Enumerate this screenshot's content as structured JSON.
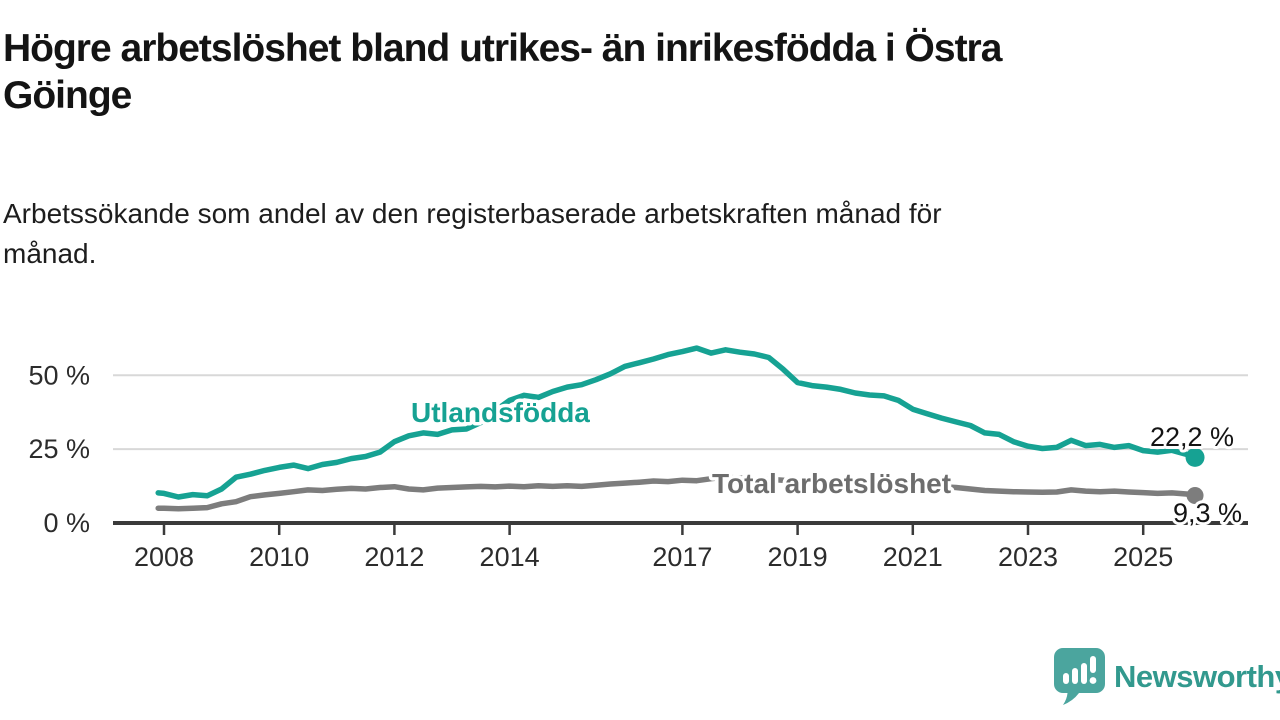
{
  "title_lines": [
    "Högre arbetslöshet bland utrikes- än inrikesfödda i Östra",
    "Göinge"
  ],
  "subtitle_lines": [
    "Arbetssökande som andel av den registerbaserade arbetskraften månad för",
    "månad."
  ],
  "colors": {
    "foreign_line": "#16a293",
    "total_line": "#7d7d7d",
    "total_label": "#6d6d6d",
    "grid": "#d8d8d8",
    "axis": "#3a3a3a",
    "text": "#141414",
    "logo_icon": "#4BA59E",
    "logo_text": "#32998E"
  },
  "chart_data": {
    "type": "line",
    "grid": "horizontal",
    "ylim": [
      0,
      62
    ],
    "x_years": [
      2007.9,
      2008,
      2008.25,
      2008.5,
      2008.75,
      2009,
      2009.25,
      2009.5,
      2009.75,
      2010,
      2010.25,
      2010.5,
      2010.75,
      2011,
      2011.25,
      2011.5,
      2011.75,
      2012,
      2012.25,
      2012.5,
      2012.75,
      2013,
      2013.25,
      2013.5,
      2013.75,
      2014,
      2014.25,
      2014.5,
      2014.75,
      2015,
      2015.25,
      2015.5,
      2015.75,
      2016,
      2016.25,
      2016.5,
      2016.75,
      2017,
      2017.25,
      2017.5,
      2017.75,
      2018,
      2018.25,
      2018.5,
      2018.75,
      2019,
      2019.25,
      2019.5,
      2019.75,
      2020,
      2020.25,
      2020.5,
      2020.75,
      2021,
      2021.25,
      2021.5,
      2021.75,
      2022,
      2022.25,
      2022.5,
      2022.75,
      2023,
      2023.25,
      2023.5,
      2023.75,
      2024,
      2024.25,
      2024.5,
      2024.75,
      2025,
      2025.25,
      2025.5,
      2025.75,
      2025.9
    ],
    "series": [
      {
        "name": "Utlandsfödda",
        "color": "#16a293",
        "end_label": "22,2 %",
        "end_value": 22.2,
        "values": [
          10.2,
          10.0,
          8.8,
          9.6,
          9.2,
          11.5,
          15.5,
          16.5,
          17.8,
          18.8,
          19.6,
          18.4,
          19.8,
          20.5,
          21.8,
          22.5,
          24.0,
          27.5,
          29.5,
          30.5,
          30.0,
          31.5,
          31.8,
          34.0,
          38.0,
          41.5,
          43.2,
          42.5,
          44.5,
          46.0,
          46.8,
          48.5,
          50.5,
          53.0,
          54.2,
          55.5,
          57.0,
          58.0,
          59.2,
          57.5,
          58.6,
          57.8,
          57.2,
          56.0,
          52.0,
          47.5,
          46.5,
          46.0,
          45.2,
          44.0,
          43.3,
          43.0,
          41.5,
          38.5,
          37.0,
          35.5,
          34.2,
          33.0,
          30.5,
          30.0,
          27.5,
          26.0,
          25.2,
          25.6,
          28.0,
          26.2,
          26.6,
          25.6,
          26.2,
          24.5,
          24.0,
          24.6,
          23.2,
          22.2
        ]
      },
      {
        "name": "Total arbetslöshet",
        "color": "#7d7d7d",
        "end_label": "9,3 %",
        "end_value": 9.3,
        "values": [
          5.0,
          5.0,
          4.8,
          5.0,
          5.2,
          6.5,
          7.2,
          8.9,
          9.5,
          10.0,
          10.6,
          11.2,
          11.0,
          11.4,
          11.7,
          11.5,
          12.0,
          12.3,
          11.5,
          11.2,
          11.8,
          12.0,
          12.2,
          12.4,
          12.2,
          12.5,
          12.3,
          12.6,
          12.4,
          12.6,
          12.4,
          12.8,
          13.2,
          13.5,
          13.8,
          14.2,
          14.0,
          14.5,
          14.3,
          15.0,
          15.5,
          15.2,
          15.0,
          14.8,
          14.5,
          13.8,
          13.5,
          13.5,
          13.2,
          13.5,
          14.2,
          14.0,
          13.8,
          13.2,
          12.8,
          12.3,
          12.0,
          11.5,
          11.0,
          10.8,
          10.6,
          10.5,
          10.4,
          10.5,
          11.2,
          10.8,
          10.6,
          10.8,
          10.5,
          10.3,
          10.0,
          10.2,
          9.8,
          9.3
        ]
      }
    ],
    "yticks": [
      {
        "label": "0 %",
        "value": 0
      },
      {
        "label": "25 %",
        "value": 25
      },
      {
        "label": "50 %",
        "value": 50
      }
    ],
    "xticks": [
      {
        "label": "2008",
        "year": 2008
      },
      {
        "label": "2010",
        "year": 2010
      },
      {
        "label": "2012",
        "year": 2012
      },
      {
        "label": "2014",
        "year": 2014
      },
      {
        "label": "2017",
        "year": 2017
      },
      {
        "label": "2019",
        "year": 2019
      },
      {
        "label": "2021",
        "year": 2021
      },
      {
        "label": "2023",
        "year": 2023
      },
      {
        "label": "2025",
        "year": 2025
      }
    ]
  },
  "logo": {
    "text": "Newsworthy"
  }
}
